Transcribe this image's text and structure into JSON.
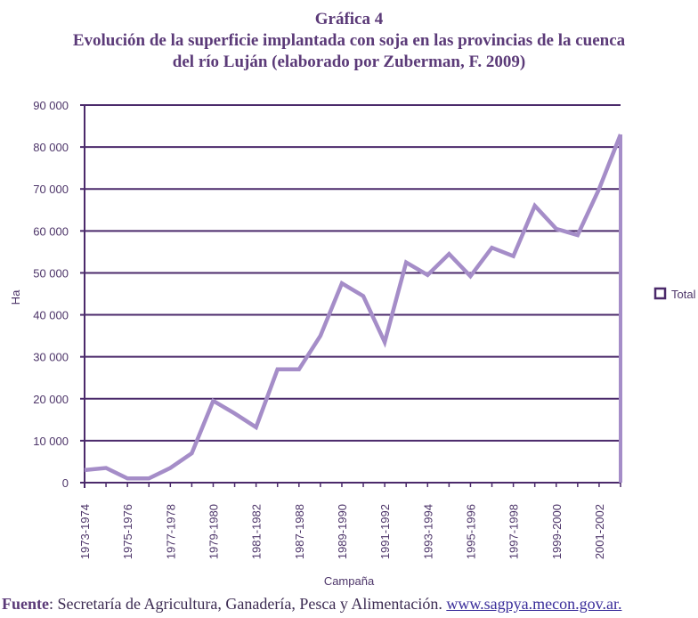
{
  "heading": {
    "label": "Gráfica 4",
    "line1": "Evolución de la superficie implantada con soja en las provincias de la cuenca",
    "line2": "del río Luján (elaborado por Zuberman, F. 2009)"
  },
  "source": {
    "label": "Fuente",
    "text": ": Secretaría de Agricultura, Ganadería, Pesca y Alimentación. ",
    "url": "www.sagpya.mecon.gov.ar."
  },
  "colors": {
    "series": "#a58dc8",
    "grid": "#4b2a6b",
    "text": "#4d3569"
  },
  "chart_data": {
    "type": "line",
    "title": "Evolución de la superficie implantada con soja en las provincias de la cuenca del río Luján (elaborado por Zuberman, F. 2009)",
    "xlabel": "Campaña",
    "ylabel": "Ha",
    "ylim": [
      0,
      90000
    ],
    "yticks": [
      0,
      10000,
      20000,
      30000,
      40000,
      50000,
      60000,
      70000,
      80000,
      90000
    ],
    "ytick_labels": [
      "0",
      "10 000",
      "20 000",
      "30 000",
      "40 000",
      "50 000",
      "60 000",
      "70 000",
      "80 000",
      "90 000"
    ],
    "categories": [
      "1973-1974",
      "1974-1975",
      "1975-1976",
      "1976-1977",
      "1977-1978",
      "1978-1979",
      "1979-1980",
      "1980-1981",
      "1981-1982",
      "1986-1987",
      "1987-1988",
      "1988-1989",
      "1989-1990",
      "1990-1991",
      "1991-1992",
      "1992-1993",
      "1993-1994",
      "1994-1995",
      "1995-1996",
      "1996-1997",
      "1997-1998",
      "1998-1999",
      "1999-2000",
      "2000-2001",
      "2001-2002",
      "2002-2003"
    ],
    "xtick_labels": [
      "1973-1974",
      "1975-1976",
      "1977-1978",
      "1979-1980",
      "1981-1982",
      "1987-1988",
      "1989-1990",
      "1991-1992",
      "1993-1994",
      "1995-1996",
      "1997-1998",
      "1999-2000",
      "2001-2002"
    ],
    "grid": true,
    "legend": "right",
    "series": [
      {
        "name": "Total",
        "values": [
          3000,
          3500,
          1000,
          1000,
          3500,
          7000,
          19500,
          16500,
          13200,
          27000,
          27000,
          35000,
          47500,
          44500,
          33500,
          52500,
          49500,
          54500,
          49200,
          56000,
          54000,
          66000,
          60500,
          59000,
          70000,
          83000
        ]
      }
    ]
  }
}
